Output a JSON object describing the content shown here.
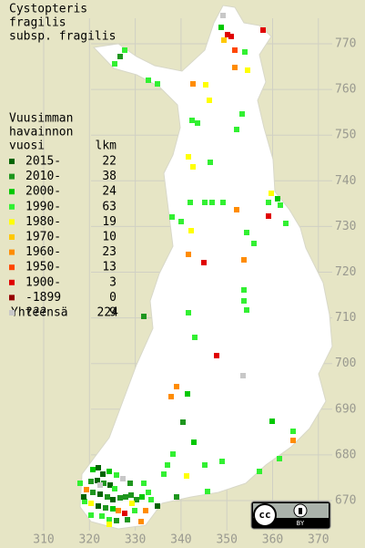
{
  "title": [
    "Cystopteris",
    "fragilis",
    "subsp. fragilis"
  ],
  "legend": {
    "header": [
      "Vuusimman",
      "havainnon",
      "vuosi"
    ],
    "count_header": "lkm",
    "entries": [
      {
        "label": "2015-",
        "count": 22,
        "color": "#006400"
      },
      {
        "label": "2010-",
        "count": 38,
        "color": "#1e961e"
      },
      {
        "label": "2000-",
        "count": 24,
        "color": "#00c800"
      },
      {
        "label": "1990-",
        "count": 63,
        "color": "#32f032"
      },
      {
        "label": "1980-",
        "count": 19,
        "color": "#ffff00"
      },
      {
        "label": "1970-",
        "count": 10,
        "color": "#ffc800"
      },
      {
        "label": "1960-",
        "count": 23,
        "color": "#ff8c00"
      },
      {
        "label": "1950-",
        "count": 13,
        "color": "#ff4600"
      },
      {
        "label": "1900-",
        "count": 3,
        "color": "#e00000"
      },
      {
        "label": "-1899",
        "count": 0,
        "color": "#960000"
      },
      {
        "label": "???",
        "count": 9,
        "color": "#c8c8c8"
      }
    ],
    "total_label": "Yhteensä",
    "total": 224
  },
  "axes": {
    "y_labels": [
      770,
      760,
      750,
      740,
      730,
      720,
      710,
      700,
      690,
      680,
      670
    ],
    "x_labels": [
      310,
      320,
      330,
      340,
      350,
      360,
      370
    ]
  },
  "license": {
    "badge": "cc",
    "by": "BY"
  }
}
